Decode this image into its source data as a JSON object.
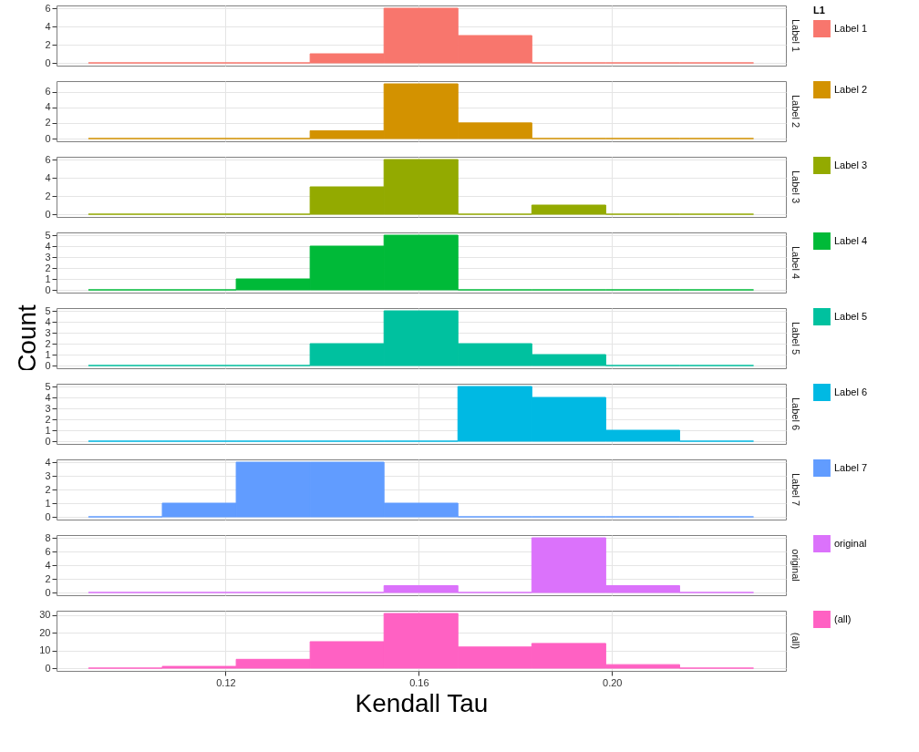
{
  "chart_data": [
    {
      "type": "histogram",
      "legend_title": "L1",
      "legend": "right",
      "grid": true,
      "tick_labels": "y",
      "bins": [
        0.0916,
        0.1069,
        0.1222,
        0.1375,
        0.1528,
        0.1681,
        0.1834,
        0.1987,
        0.214,
        0.2293
      ],
      "xlim": [
        0.085,
        0.236
      ],
      "xticks": [
        0.12,
        0.16,
        0.2
      ],
      "ylim": [
        -0.3,
        6.3
      ],
      "yticks": [
        0,
        2,
        4,
        6
      ],
      "series": [
        {
          "name": "Label 1",
          "color": "#f8766d",
          "values": [
            0,
            0,
            0,
            1,
            6,
            3,
            0,
            0,
            0
          ]
        }
      ]
    },
    {
      "type": "histogram",
      "legend": "right",
      "grid": true,
      "tick_labels": "y",
      "bins": [
        0.0916,
        0.1069,
        0.1222,
        0.1375,
        0.1528,
        0.1681,
        0.1834,
        0.1987,
        0.214,
        0.2293
      ],
      "xlim": [
        0.085,
        0.236
      ],
      "xticks": [
        0.12,
        0.16,
        0.2
      ],
      "ylim": [
        -0.35,
        7.35
      ],
      "yticks": [
        0,
        2,
        4,
        6
      ],
      "series": [
        {
          "name": "Label 2",
          "color": "#d39200",
          "values": [
            0,
            0,
            0,
            1,
            7,
            2,
            0,
            0,
            0
          ]
        }
      ]
    },
    {
      "type": "histogram",
      "legend": "right",
      "grid": true,
      "tick_labels": "y",
      "bins": [
        0.0916,
        0.1069,
        0.1222,
        0.1375,
        0.1528,
        0.1681,
        0.1834,
        0.1987,
        0.214,
        0.2293
      ],
      "xlim": [
        0.085,
        0.236
      ],
      "xticks": [
        0.12,
        0.16,
        0.2
      ],
      "ylim": [
        -0.3,
        6.3
      ],
      "yticks": [
        0,
        2,
        4,
        6
      ],
      "series": [
        {
          "name": "Label 3",
          "color": "#93aa00",
          "values": [
            0,
            0,
            0,
            3,
            6,
            0,
            1,
            0,
            0
          ]
        }
      ]
    },
    {
      "type": "histogram",
      "legend": "right",
      "grid": true,
      "tick_labels": "y",
      "bins": [
        0.0916,
        0.1069,
        0.1222,
        0.1375,
        0.1528,
        0.1681,
        0.1834,
        0.1987,
        0.214,
        0.2293
      ],
      "xlim": [
        0.085,
        0.236
      ],
      "xticks": [
        0.12,
        0.16,
        0.2
      ],
      "ylim": [
        -0.25,
        5.25
      ],
      "yticks": [
        0,
        1,
        2,
        3,
        4,
        5
      ],
      "series": [
        {
          "name": "Label 4",
          "color": "#00ba38",
          "values": [
            0,
            0,
            1,
            4,
            5,
            0,
            0,
            0,
            0
          ]
        }
      ]
    },
    {
      "type": "histogram",
      "ylabel": "Count",
      "legend": "right",
      "grid": true,
      "tick_labels": "y",
      "bins": [
        0.0916,
        0.1069,
        0.1222,
        0.1375,
        0.1528,
        0.1681,
        0.1834,
        0.1987,
        0.214,
        0.2293
      ],
      "xlim": [
        0.085,
        0.236
      ],
      "xticks": [
        0.12,
        0.16,
        0.2
      ],
      "ylim": [
        -0.25,
        5.25
      ],
      "yticks": [
        0,
        1,
        2,
        3,
        4,
        5
      ],
      "series": [
        {
          "name": "Label 5",
          "color": "#00c19f",
          "values": [
            0,
            0,
            0,
            2,
            5,
            2,
            1,
            0,
            0
          ]
        }
      ]
    },
    {
      "type": "histogram",
      "legend": "right",
      "grid": true,
      "tick_labels": "y",
      "bins": [
        0.0916,
        0.1069,
        0.1222,
        0.1375,
        0.1528,
        0.1681,
        0.1834,
        0.1987,
        0.214,
        0.2293
      ],
      "xlim": [
        0.085,
        0.236
      ],
      "xticks": [
        0.12,
        0.16,
        0.2
      ],
      "ylim": [
        -0.25,
        5.25
      ],
      "yticks": [
        0,
        1,
        2,
        3,
        4,
        5
      ],
      "series": [
        {
          "name": "Label 6",
          "color": "#00b9e3",
          "values": [
            0,
            0,
            0,
            0,
            0,
            5,
            4,
            1,
            0
          ]
        }
      ]
    },
    {
      "type": "histogram",
      "legend": "right",
      "grid": true,
      "tick_labels": "y",
      "bins": [
        0.0916,
        0.1069,
        0.1222,
        0.1375,
        0.1528,
        0.1681,
        0.1834,
        0.1987,
        0.214,
        0.2293
      ],
      "xlim": [
        0.085,
        0.236
      ],
      "xticks": [
        0.12,
        0.16,
        0.2
      ],
      "ylim": [
        -0.2,
        4.2
      ],
      "yticks": [
        0,
        1,
        2,
        3,
        4
      ],
      "series": [
        {
          "name": "Label 7",
          "color": "#619cff",
          "values": [
            0,
            1,
            4,
            4,
            1,
            0,
            0,
            0,
            0
          ]
        }
      ]
    },
    {
      "type": "histogram",
      "legend": "right",
      "grid": true,
      "tick_labels": "y",
      "bins": [
        0.0916,
        0.1069,
        0.1222,
        0.1375,
        0.1528,
        0.1681,
        0.1834,
        0.1987,
        0.214,
        0.2293
      ],
      "xlim": [
        0.085,
        0.236
      ],
      "xticks": [
        0.12,
        0.16,
        0.2
      ],
      "ylim": [
        -0.4,
        8.4
      ],
      "yticks": [
        0,
        2,
        4,
        6,
        8
      ],
      "series": [
        {
          "name": "original",
          "color": "#db72fb",
          "values": [
            0,
            0,
            0,
            0,
            1,
            0,
            8,
            1,
            0
          ]
        }
      ]
    },
    {
      "type": "histogram",
      "xlabel": "Kendall Tau",
      "legend": "right",
      "grid": true,
      "bins": [
        0.0916,
        0.1069,
        0.1222,
        0.1375,
        0.1528,
        0.1681,
        0.1834,
        0.1987,
        0.214,
        0.2293
      ],
      "xlim": [
        0.085,
        0.236
      ],
      "xticks": [
        0.12,
        0.16,
        {
          "value": 0.2,
          "label": "0.20"
        }
      ],
      "ylim": [
        -1.55,
        32.55
      ],
      "yticks": [
        0,
        10,
        20,
        30
      ],
      "series": [
        {
          "name": "(all)",
          "color": "#ff61c3",
          "values": [
            0,
            1,
            5,
            15,
            31,
            12,
            14,
            2,
            0
          ]
        }
      ]
    }
  ]
}
